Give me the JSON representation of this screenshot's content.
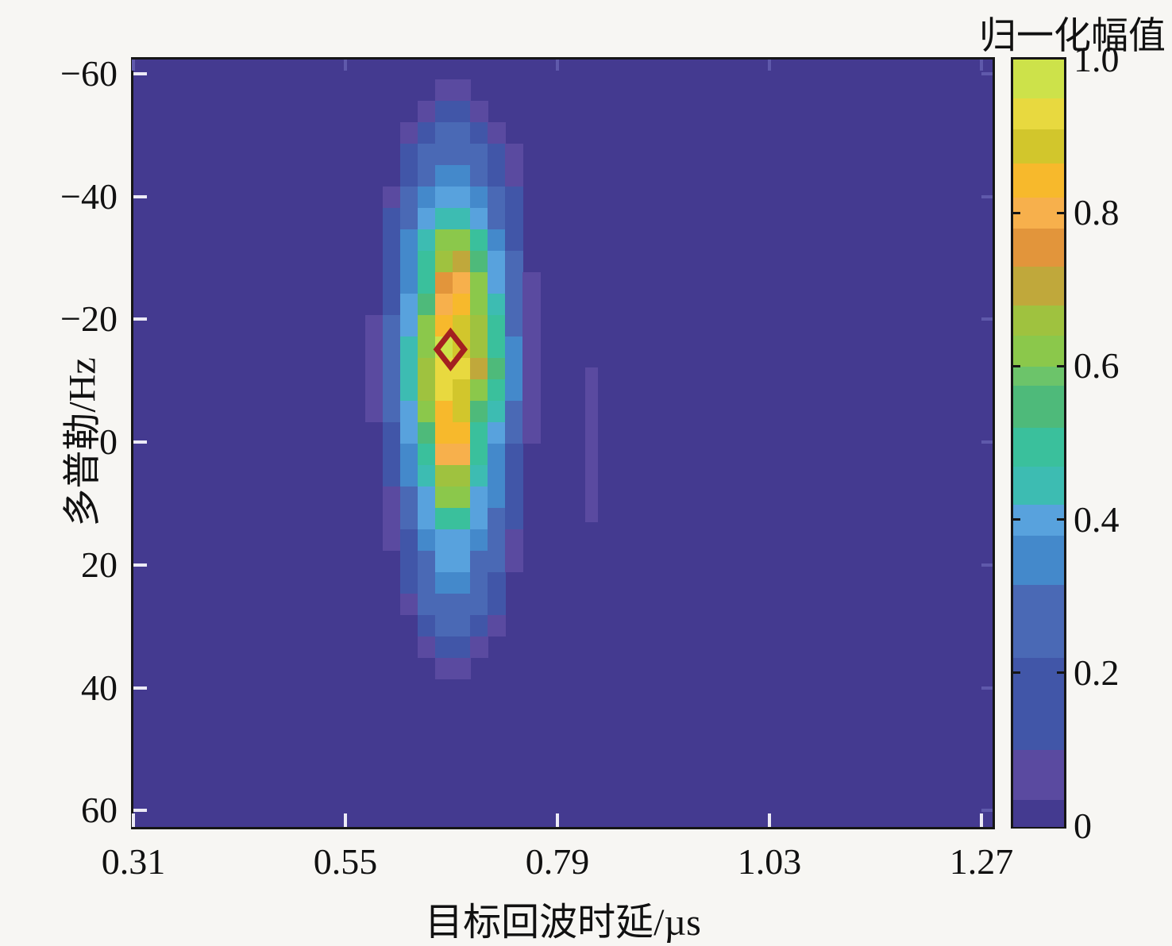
{
  "figure": {
    "x_axis_title": "目标回波时延/µs",
    "y_axis_title": "多普勒/Hz",
    "colorbar_title": "归一化幅值"
  },
  "chart_data": {
    "type": "heatmap",
    "title": "",
    "xlabel": "目标回波时延/µs",
    "ylabel": "多普勒/Hz",
    "colorbar_label": "归一化幅值",
    "xlim": [
      0.31,
      1.283
    ],
    "ylim_top_to_bottom": [
      -62.3,
      62.7
    ],
    "xticks": [
      0.31,
      0.55,
      0.79,
      1.03,
      1.27
    ],
    "xtick_labels": [
      "0.31",
      "0.55",
      "0.79",
      "1.03",
      "1.27"
    ],
    "yticks": [
      -60,
      -40,
      -20,
      0,
      20,
      40,
      60
    ],
    "ytick_labels": [
      "−60",
      "−40",
      "−20",
      "0",
      "20",
      "40",
      "60"
    ],
    "colorbar_ticks": [
      1.0,
      0.8,
      0.6,
      0.4,
      0.2,
      0
    ],
    "colorbar_tick_labels": [
      "1.0",
      "0.8",
      "0.6",
      "0.4",
      "0.2",
      "0"
    ],
    "grid": false,
    "background_value": 0.02,
    "colormap_stops": [
      {
        "level": 0.0,
        "color": "#443a90"
      },
      {
        "level": 0.035,
        "color": "#5a4aa0"
      },
      {
        "level": 0.1,
        "color": "#4156a8"
      },
      {
        "level": 0.22,
        "color": "#4a69b5"
      },
      {
        "level": 0.315,
        "color": "#4489cb"
      },
      {
        "level": 0.38,
        "color": "#58a2dd"
      },
      {
        "level": 0.42,
        "color": "#3dbcb2"
      },
      {
        "level": 0.47,
        "color": "#3ac09c"
      },
      {
        "level": 0.52,
        "color": "#4eba7a"
      },
      {
        "level": 0.575,
        "color": "#6cc46a"
      },
      {
        "level": 0.6,
        "color": "#8bc84b"
      },
      {
        "level": 0.64,
        "color": "#9fc23f"
      },
      {
        "level": 0.68,
        "color": "#c0a83b"
      },
      {
        "level": 0.73,
        "color": "#e2953b"
      },
      {
        "level": 0.78,
        "color": "#f7b04c"
      },
      {
        "level": 0.82,
        "color": "#f7b92c"
      },
      {
        "level": 0.865,
        "color": "#d2c62c"
      },
      {
        "level": 0.91,
        "color": "#e8d93f"
      },
      {
        "level": 0.95,
        "color": "#cde24a"
      }
    ],
    "peak_marker": {
      "x": 0.669,
      "y": -15.1,
      "symbol": "open-diamond",
      "color": "#a32020",
      "half_width_us": 0.0155,
      "half_height_hz": 2.85
    },
    "heat_blob": {
      "x0": 0.5725,
      "dx": 0.0198,
      "y0": -59.1,
      "dy": 3.49,
      "values": [
        [
          0.02,
          0.02,
          0.02,
          0.02,
          0.06,
          0.06,
          0.02,
          0.02,
          0.02,
          0.02
        ],
        [
          0.02,
          0.02,
          0.02,
          0.06,
          0.15,
          0.15,
          0.06,
          0.02,
          0.02,
          0.02
        ],
        [
          0.02,
          0.02,
          0.06,
          0.15,
          0.27,
          0.27,
          0.15,
          0.06,
          0.02,
          0.02
        ],
        [
          0.02,
          0.02,
          0.15,
          0.27,
          0.27,
          0.27,
          0.27,
          0.15,
          0.06,
          0.02
        ],
        [
          0.02,
          0.02,
          0.15,
          0.27,
          0.35,
          0.35,
          0.27,
          0.15,
          0.06,
          0.02
        ],
        [
          0.02,
          0.06,
          0.27,
          0.35,
          0.4,
          0.4,
          0.35,
          0.27,
          0.15,
          0.02
        ],
        [
          0.02,
          0.15,
          0.27,
          0.4,
          0.44,
          0.44,
          0.4,
          0.27,
          0.15,
          0.02
        ],
        [
          0.02,
          0.15,
          0.35,
          0.44,
          0.6,
          0.6,
          0.49,
          0.35,
          0.15,
          0.02
        ],
        [
          0.02,
          0.15,
          0.35,
          0.49,
          0.66,
          0.7,
          0.55,
          0.4,
          0.27,
          0.02
        ],
        [
          0.02,
          0.15,
          0.35,
          0.49,
          0.75,
          0.8,
          0.6,
          0.4,
          0.27,
          0.06
        ],
        [
          0.02,
          0.15,
          0.4,
          0.55,
          0.8,
          0.84,
          0.62,
          0.44,
          0.27,
          0.06
        ],
        [
          0.06,
          0.27,
          0.4,
          0.6,
          0.84,
          0.89,
          0.66,
          0.49,
          0.27,
          0.06
        ],
        [
          0.06,
          0.27,
          0.44,
          0.62,
          0.97,
          0.89,
          0.66,
          0.49,
          0.35,
          0.06
        ],
        [
          0.06,
          0.27,
          0.44,
          0.66,
          0.93,
          0.93,
          0.7,
          0.55,
          0.35,
          0.06
        ],
        [
          0.06,
          0.27,
          0.44,
          0.66,
          0.93,
          0.89,
          0.62,
          0.49,
          0.35,
          0.06
        ],
        [
          0.06,
          0.27,
          0.4,
          0.6,
          0.84,
          0.89,
          0.55,
          0.44,
          0.27,
          0.06
        ],
        [
          0.02,
          0.15,
          0.4,
          0.55,
          0.84,
          0.84,
          0.49,
          0.4,
          0.27,
          0.06
        ],
        [
          0.02,
          0.15,
          0.35,
          0.49,
          0.8,
          0.8,
          0.49,
          0.35,
          0.15,
          0.02
        ],
        [
          0.02,
          0.15,
          0.35,
          0.44,
          0.66,
          0.66,
          0.44,
          0.35,
          0.15,
          0.02
        ],
        [
          0.02,
          0.06,
          0.27,
          0.4,
          0.6,
          0.6,
          0.4,
          0.35,
          0.15,
          0.02
        ],
        [
          0.02,
          0.06,
          0.27,
          0.4,
          0.49,
          0.49,
          0.4,
          0.27,
          0.15,
          0.02
        ],
        [
          0.02,
          0.06,
          0.15,
          0.35,
          0.4,
          0.4,
          0.35,
          0.27,
          0.06,
          0.02
        ],
        [
          0.02,
          0.02,
          0.15,
          0.27,
          0.4,
          0.4,
          0.27,
          0.27,
          0.06,
          0.02
        ],
        [
          0.02,
          0.02,
          0.15,
          0.27,
          0.35,
          0.35,
          0.27,
          0.15,
          0.02,
          0.02
        ],
        [
          0.02,
          0.02,
          0.06,
          0.27,
          0.27,
          0.27,
          0.27,
          0.15,
          0.02,
          0.02
        ],
        [
          0.02,
          0.02,
          0.02,
          0.15,
          0.27,
          0.27,
          0.15,
          0.06,
          0.02,
          0.02
        ],
        [
          0.02,
          0.02,
          0.02,
          0.06,
          0.15,
          0.15,
          0.06,
          0.02,
          0.02,
          0.02
        ],
        [
          0.02,
          0.02,
          0.02,
          0.02,
          0.06,
          0.06,
          0.02,
          0.02,
          0.02,
          0.02
        ]
      ]
    },
    "artifact_streak": {
      "x_range_us": [
        0.8215,
        0.8359
      ],
      "y_range_hz": [
        -12.2,
        13.0
      ],
      "value": 0.06
    }
  }
}
